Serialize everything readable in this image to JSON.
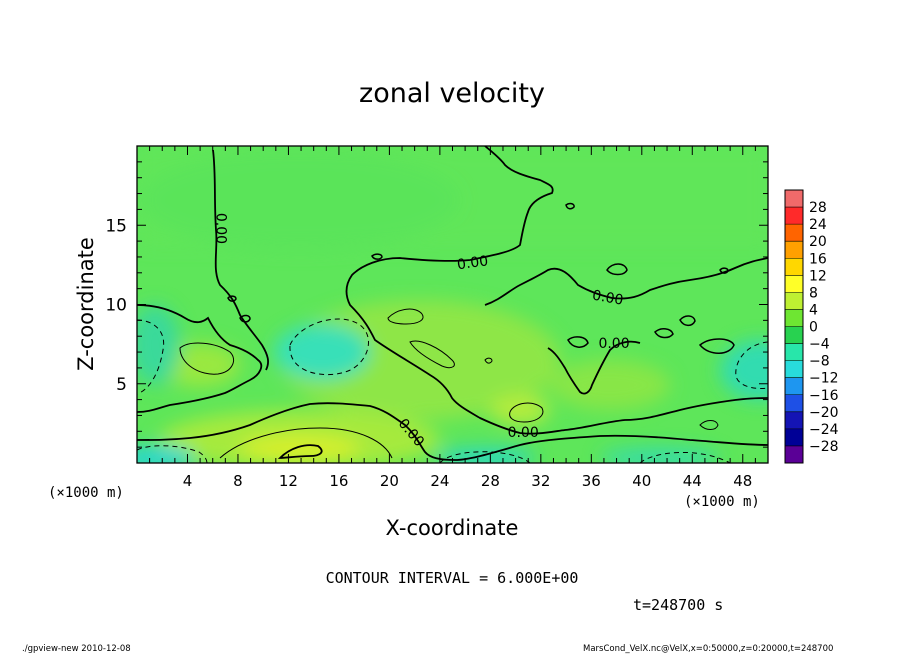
{
  "chart_data": {
    "type": "heatmap",
    "title": "zonal velocity",
    "xlabel": "X-coordinate",
    "ylabel": "Z-coordinate",
    "x_unit_left": "(×1000 m)",
    "x_unit_right": "(×1000 m)",
    "xlim": [
      0,
      50
    ],
    "ylim": [
      0,
      20
    ],
    "xticks": [
      4,
      8,
      12,
      16,
      20,
      24,
      28,
      32,
      36,
      40,
      44,
      48
    ],
    "yticks": [
      5,
      10,
      15
    ],
    "contour_interval_text": "CONTOUR INTERVAL = 6.000E+00",
    "time_text": "t=248700 s",
    "contour_labels": [
      {
        "text": "0.00",
        "x": 6.6,
        "y": 14.8,
        "rotation": 90
      },
      {
        "text": "0.00",
        "x": 26.6,
        "y": 12.6,
        "rotation": -8
      },
      {
        "text": "0.00",
        "x": 37.3,
        "y": 10.4,
        "rotation": 10
      },
      {
        "text": "0.00",
        "x": 37.8,
        "y": 7.5,
        "rotation": 0
      },
      {
        "text": "0.00",
        "x": 30.6,
        "y": 1.9,
        "rotation": 0
      },
      {
        "text": "0.00",
        "x": 21.7,
        "y": 1.9,
        "rotation": 50
      }
    ],
    "colorbar": {
      "levels": [
        "28",
        "24",
        "20",
        "16",
        "12",
        "8",
        "4",
        "0",
        "−4",
        "−8",
        "−12",
        "−16",
        "−20",
        "−24",
        "−28"
      ],
      "colors": [
        "#f06a6a",
        "#ff2a2a",
        "#ff6400",
        "#ffa000",
        "#ffd700",
        "#ffff28",
        "#bef032",
        "#6ee632",
        "#28d250",
        "#28e6aa",
        "#28dcdc",
        "#1e96f0",
        "#1e50e6",
        "#1414b4",
        "#000096",
        "#5a0096"
      ]
    },
    "field_regions": [
      {
        "desc": "positive",
        "x": 14.5,
        "y": 0.8,
        "value": 8
      },
      {
        "desc": "negative",
        "x": 15,
        "y": 7.2,
        "value": -8
      },
      {
        "desc": "negative",
        "x": 1.5,
        "y": 0.4,
        "value": -8
      },
      {
        "desc": "negative",
        "x": 27,
        "y": 0.4,
        "value": -8
      },
      {
        "desc": "negative",
        "x": 49,
        "y": 6.5,
        "value": -6
      }
    ]
  },
  "footer": {
    "program": "./gpview-new  2010-12-08",
    "source": "MarsCond_VelX.nc@VelX,x=0:50000,z=0:20000,t=248700"
  }
}
